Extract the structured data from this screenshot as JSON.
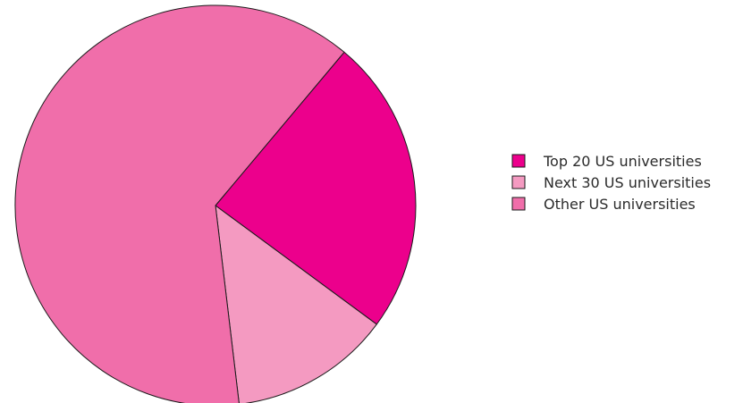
{
  "chart_data": {
    "type": "pie",
    "title": "",
    "categories": [
      "Top 20 US universities",
      "Next 30 US universities",
      "Other US universities"
    ],
    "values": [
      24,
      13,
      63
    ],
    "colors": [
      "#EC008C",
      "#F49AC1",
      "#F06EAA"
    ],
    "start_angle_deg": 40,
    "direction": "clockwise",
    "legend_position": "right"
  }
}
